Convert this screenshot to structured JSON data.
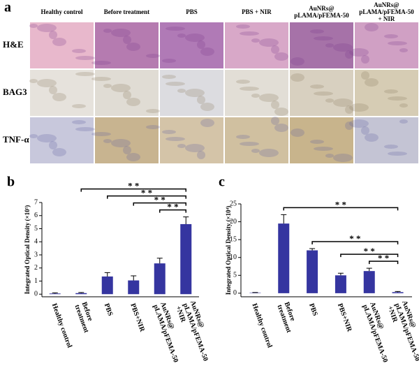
{
  "panel_a": {
    "label": "a",
    "columns": [
      "Healthy control",
      "Before treatment",
      "PBS",
      "PBS + NIR",
      "AuNRs@\npLAMA/pFEMA-50",
      "AuNRs@\npLAMA/pFEMA-50\n+ NIR"
    ],
    "rows": [
      "H&E",
      "BAG3",
      "TNF-α"
    ]
  },
  "chart_data": [
    {
      "type": "bar",
      "label": "b",
      "y_label": "Integrated Optical Density (×10⁵)",
      "categories": [
        "Healthy  control",
        "Before\ntreatment",
        "PBS",
        "PBS+NIR",
        "AuNRs@\npLAMA/pFEMA-50",
        "AuNRs@\npLAMA/pFEMA-50\n+NIR"
      ],
      "series": [
        {
          "color": "#3535a0",
          "values": [
            0.05,
            0.08,
            1.35,
            1.05,
            2.35,
            5.35
          ],
          "errors": [
            0.05,
            0.05,
            0.3,
            0.35,
            0.4,
            0.55
          ]
        }
      ],
      "ylim": [
        -0.2,
        7
      ],
      "yticks": [
        0,
        1,
        2,
        3,
        4,
        5,
        6,
        7
      ],
      "annotations": [
        {
          "from": "Before\ntreatment",
          "to": "AuNRs@\npLAMA/pFEMA-50\n+NIR",
          "label": "* *"
        },
        {
          "from": "PBS",
          "to": "AuNRs@\npLAMA/pFEMA-50\n+NIR",
          "label": "* *"
        },
        {
          "from": "PBS+NIR",
          "to": "AuNRs@\npLAMA/pFEMA-50\n+NIR",
          "label": "* *"
        },
        {
          "from": "AuNRs@\npLAMA/pFEMA-50",
          "to": "AuNRs@\npLAMA/pFEMA-50\n+NIR",
          "label": "* *"
        }
      ]
    },
    {
      "type": "bar",
      "label": "c",
      "y_label": "Integrated Optical Density (×10⁴)",
      "categories": [
        "Healthy  control",
        "Before\ntreatment",
        "PBS",
        "PBS+NIR",
        "AuNRs@\npLAMA/pFEMA-50",
        "AuNRs@\npLAMA/pFEMA-50\n+NIR"
      ],
      "series": [
        {
          "color": "#3535a0",
          "values": [
            0.1,
            19.5,
            12,
            5,
            6.2,
            0.3
          ],
          "errors": [
            0.1,
            2.5,
            0.5,
            0.6,
            0.8,
            0.2
          ]
        }
      ],
      "ylim": [
        -1,
        25
      ],
      "yticks": [
        0,
        5,
        10,
        15,
        20,
        25
      ],
      "annotations": [
        {
          "from": "Before\ntreatment",
          "to": "AuNRs@\npLAMA/pFEMA-50\n+NIR",
          "label": "* *"
        },
        {
          "from": "PBS",
          "to": "AuNRs@\npLAMA/pFEMA-50\n+NIR",
          "label": "* *"
        },
        {
          "from": "PBS+NIR",
          "to": "AuNRs@\npLAMA/pFEMA-50\n+NIR",
          "label": "* *"
        },
        {
          "from": "AuNRs@\npLAMA/pFEMA-50",
          "to": "AuNRs@\npLAMA/pFEMA-50\n+NIR",
          "label": "* *"
        }
      ]
    }
  ]
}
